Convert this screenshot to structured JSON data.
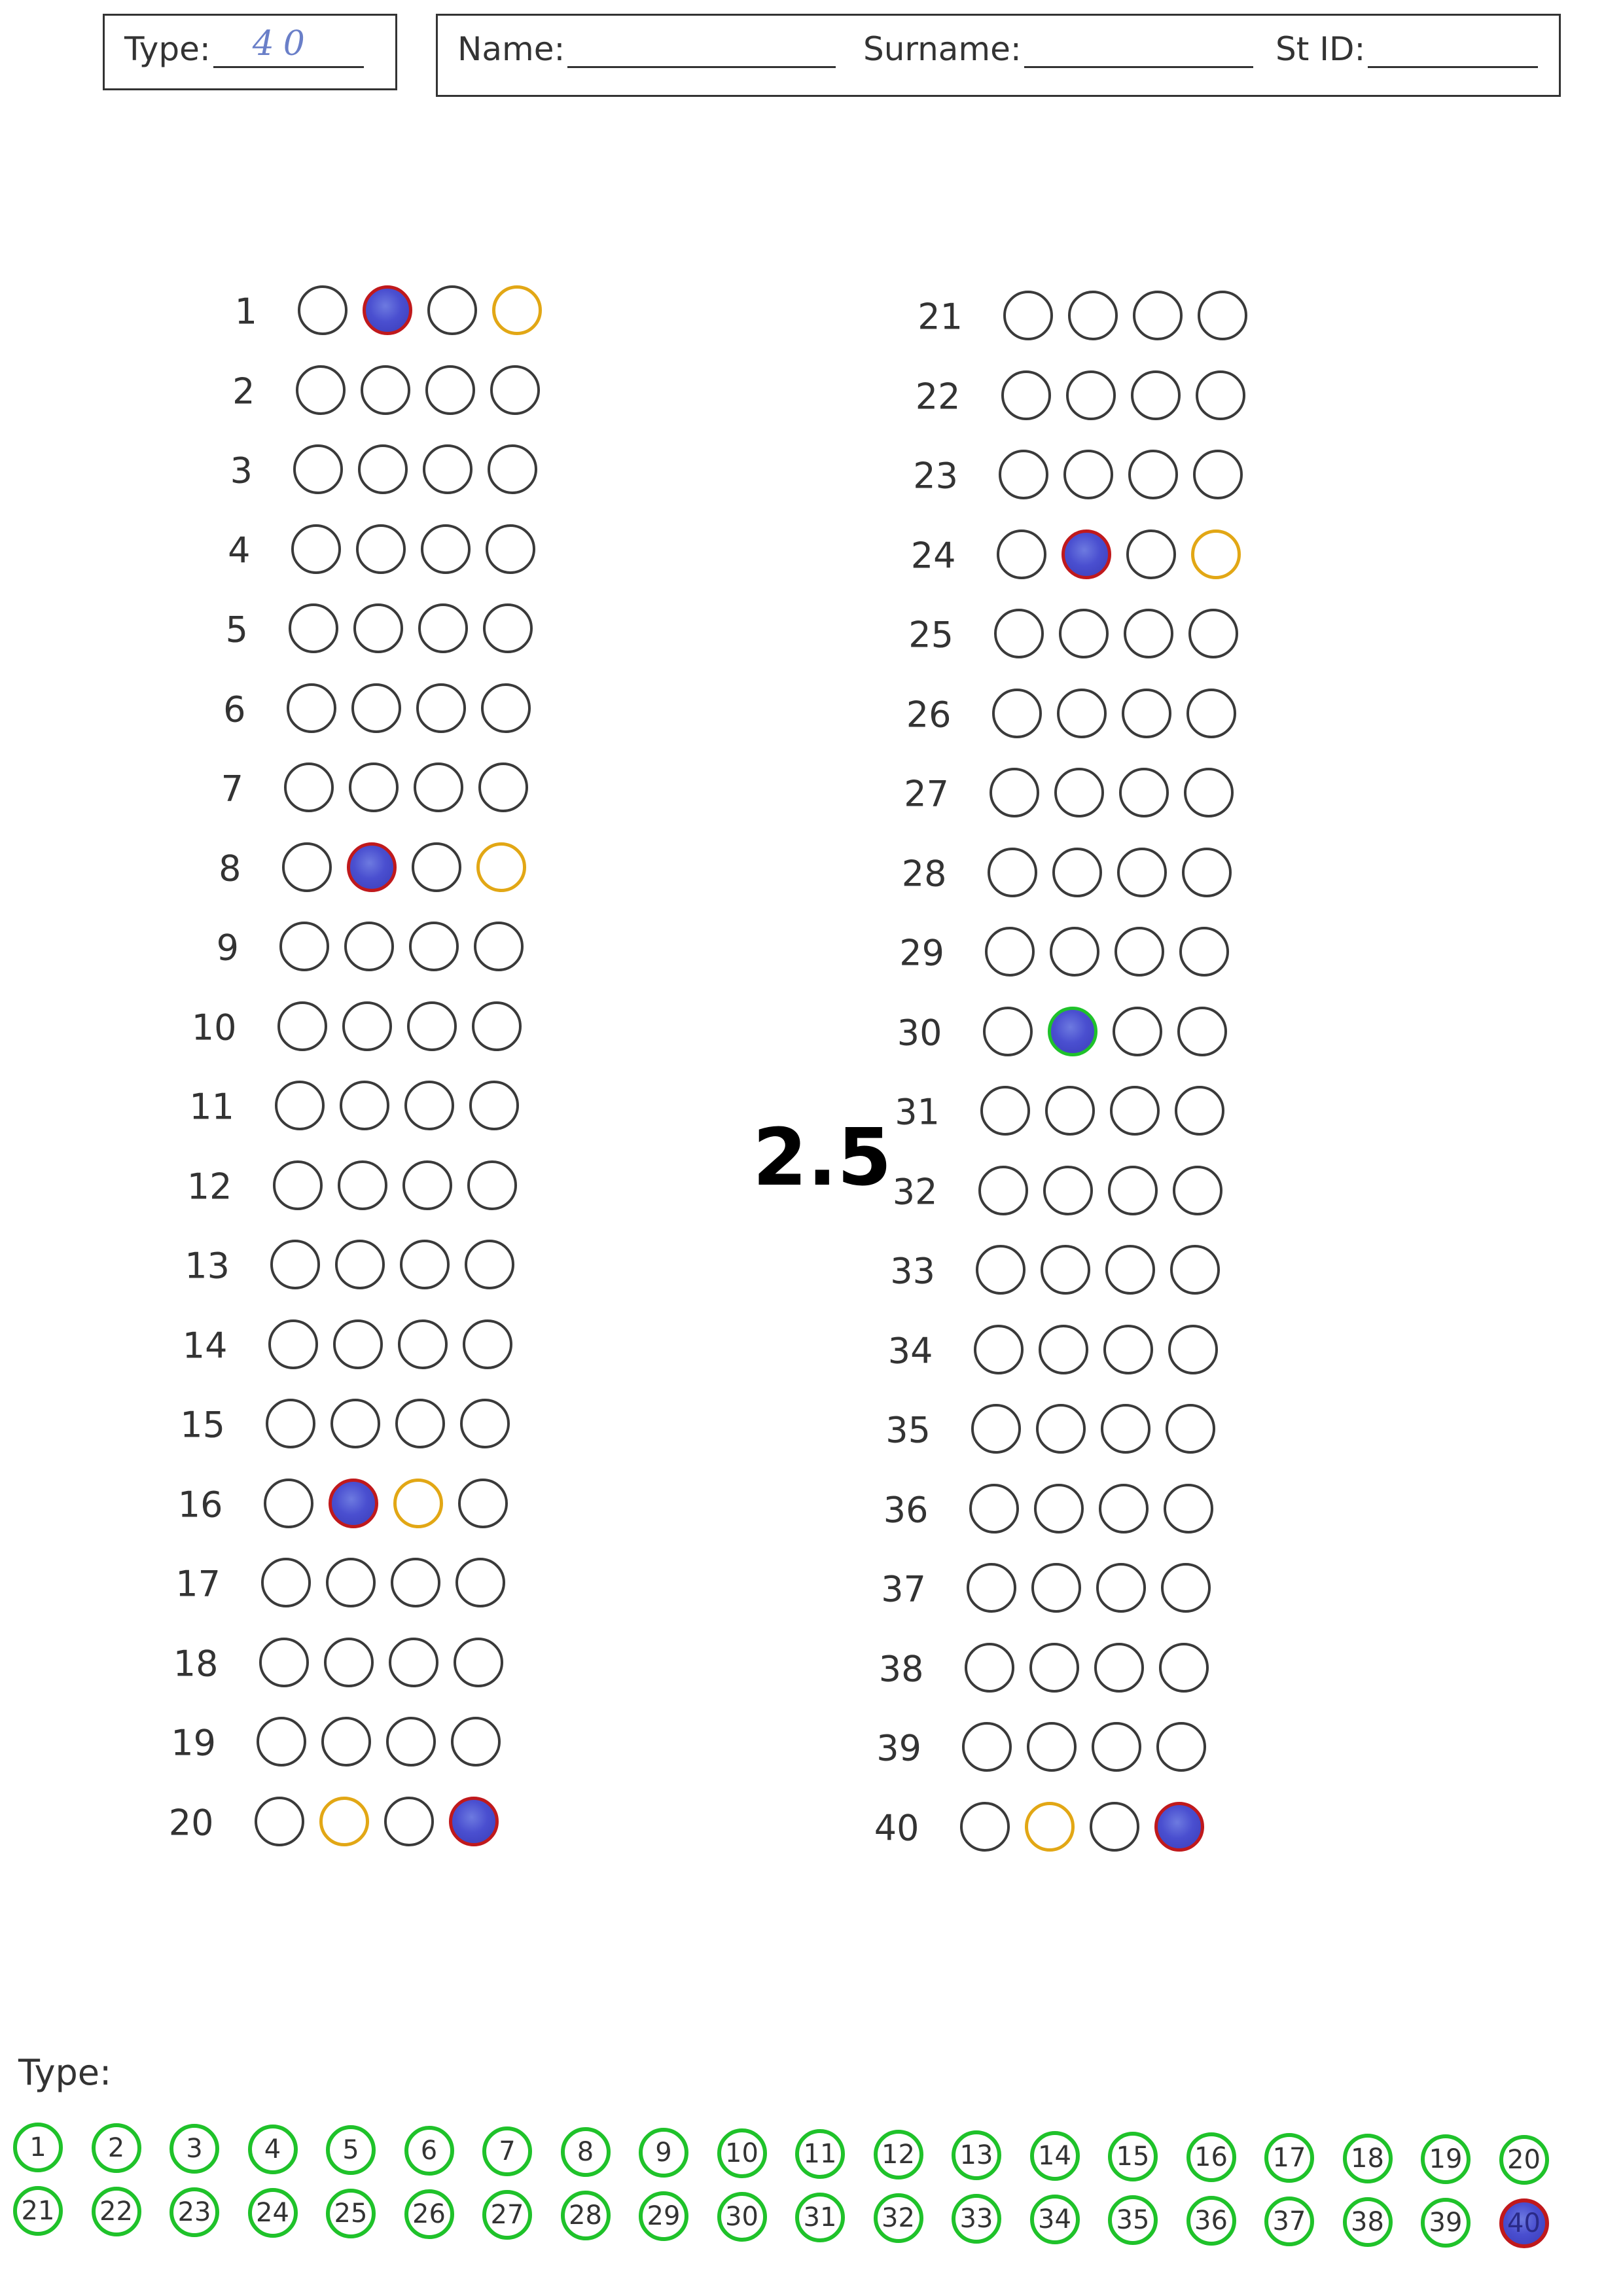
{
  "header": {
    "type_label": "Type:",
    "type_value": "40",
    "name_label": "Name:",
    "surname_label": "Surname:",
    "stid_label": "St ID:"
  },
  "score": "2.5",
  "colors": {
    "filled_ring": "#c0191c",
    "filled_fill": "#4a4fd0",
    "correct_ring": "#e2a715",
    "type_ring": "#1fc22a"
  },
  "questions": [
    {
      "number": "1",
      "filled": 2,
      "correct": 4
    },
    {
      "number": "2"
    },
    {
      "number": "3"
    },
    {
      "number": "4"
    },
    {
      "number": "5"
    },
    {
      "number": "6"
    },
    {
      "number": "7"
    },
    {
      "number": "8",
      "filled": 2,
      "correct": 4
    },
    {
      "number": "9"
    },
    {
      "number": "10"
    },
    {
      "number": "11"
    },
    {
      "number": "12"
    },
    {
      "number": "13"
    },
    {
      "number": "14"
    },
    {
      "number": "15"
    },
    {
      "number": "16",
      "filled": 2,
      "correct": 3
    },
    {
      "number": "17"
    },
    {
      "number": "18"
    },
    {
      "number": "19"
    },
    {
      "number": "20",
      "filled": 4,
      "correct": 2
    },
    {
      "number": "21"
    },
    {
      "number": "22"
    },
    {
      "number": "23"
    },
    {
      "number": "24",
      "filled": 2,
      "correct": 4
    },
    {
      "number": "25"
    },
    {
      "number": "26"
    },
    {
      "number": "27"
    },
    {
      "number": "28"
    },
    {
      "number": "29"
    },
    {
      "number": "30",
      "filled": 2,
      "filled_correct": true
    },
    {
      "number": "31"
    },
    {
      "number": "32"
    },
    {
      "number": "33"
    },
    {
      "number": "34"
    },
    {
      "number": "35"
    },
    {
      "number": "36"
    },
    {
      "number": "37"
    },
    {
      "number": "38"
    },
    {
      "number": "39"
    },
    {
      "number": "40",
      "filled": 4,
      "correct": 2
    }
  ],
  "type_section": {
    "label": "Type:",
    "options": [
      "1",
      "2",
      "3",
      "4",
      "5",
      "6",
      "7",
      "8",
      "9",
      "10",
      "11",
      "12",
      "13",
      "14",
      "15",
      "16",
      "17",
      "18",
      "19",
      "20",
      "21",
      "22",
      "23",
      "24",
      "25",
      "26",
      "27",
      "28",
      "29",
      "30",
      "31",
      "32",
      "33",
      "34",
      "35",
      "36",
      "37",
      "38",
      "39",
      "40"
    ],
    "selected": "40"
  }
}
